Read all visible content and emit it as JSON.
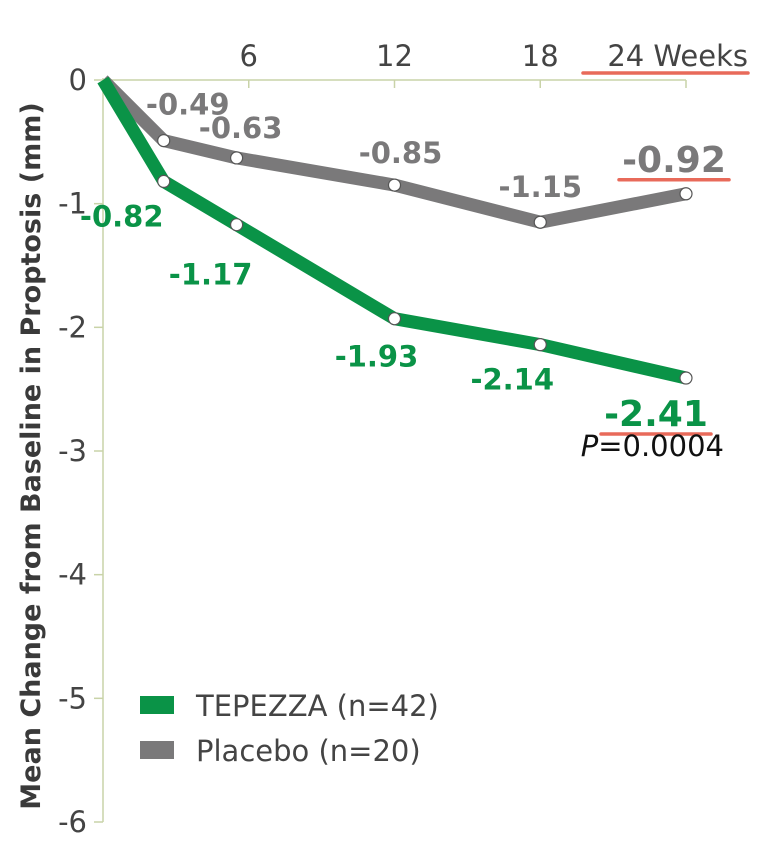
{
  "chart_data": {
    "type": "line",
    "ylabel": "Mean Change from Baseline in Proptosis (mm)",
    "x_ticks": [
      {
        "x": 6,
        "label": "6"
      },
      {
        "x": 12,
        "label": "12"
      },
      {
        "x": 18,
        "label": "18"
      },
      {
        "x": 24,
        "label": "24 Weeks"
      }
    ],
    "y_ticks": [
      0,
      -1,
      -2,
      -3,
      -4,
      -5,
      -6
    ],
    "xlim": [
      0,
      24
    ],
    "ylim": [
      -6,
      0
    ],
    "series": [
      {
        "name": "TEPEZZA (n=42)",
        "color": "#0a9347",
        "points": [
          {
            "x": 0,
            "y": 0,
            "label": ""
          },
          {
            "x": 2.5,
            "y": -0.82,
            "label": "-0.82"
          },
          {
            "x": 5.5,
            "y": -1.17,
            "label": "-1.17"
          },
          {
            "x": 12,
            "y": -1.93,
            "label": "-1.93"
          },
          {
            "x": 18,
            "y": -2.14,
            "label": "-2.14"
          },
          {
            "x": 24,
            "y": -2.41,
            "label": "-2.41"
          }
        ]
      },
      {
        "name": "Placebo (n=20)",
        "color": "#7a797a",
        "points": [
          {
            "x": 0,
            "y": 0,
            "label": ""
          },
          {
            "x": 2.5,
            "y": -0.49,
            "label": "-0.49"
          },
          {
            "x": 5.5,
            "y": -0.63,
            "label": "-0.63"
          },
          {
            "x": 12,
            "y": -0.85,
            "label": "-0.85"
          },
          {
            "x": 18,
            "y": -1.15,
            "label": "-1.15"
          },
          {
            "x": 24,
            "y": -0.92,
            "label": "-0.92"
          }
        ]
      }
    ],
    "p_value": {
      "prefix": "P",
      "text": "=0.0004"
    },
    "legend_position": "bottom-left",
    "highlight_color": "#e86a5a",
    "grid": false
  }
}
